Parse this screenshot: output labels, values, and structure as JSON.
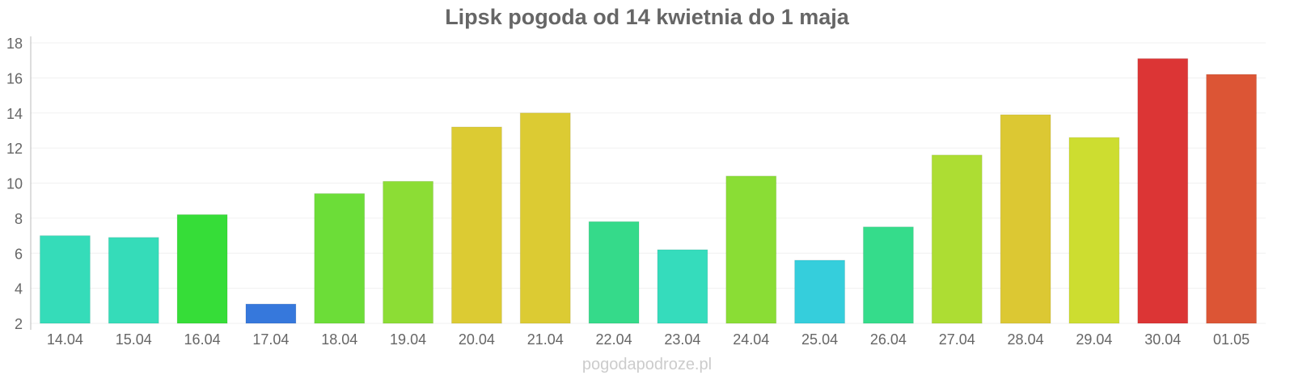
{
  "chart_data": {
    "type": "bar",
    "title": "Lipsk pogoda od 14 kwietnia do 1 maja",
    "xlabel": "",
    "ylabel": "",
    "ylim": [
      2,
      18
    ],
    "yticks": [
      2,
      4,
      6,
      8,
      10,
      12,
      14,
      16,
      18
    ],
    "grid": true,
    "categories": [
      "14.04",
      "15.04",
      "16.04",
      "17.04",
      "18.04",
      "19.04",
      "20.04",
      "21.04",
      "22.04",
      "23.04",
      "24.04",
      "25.04",
      "26.04",
      "27.04",
      "28.04",
      "29.04",
      "30.04",
      "01.05"
    ],
    "values": [
      7.0,
      6.9,
      8.2,
      3.1,
      9.4,
      10.1,
      13.2,
      14.0,
      7.8,
      6.2,
      10.4,
      5.6,
      7.5,
      11.6,
      13.9,
      12.6,
      17.1,
      16.2
    ],
    "colors": [
      "#35dcb9",
      "#35dcb9",
      "#36dd38",
      "#3678dc",
      "#6cdd38",
      "#8cdd35",
      "#dccb33",
      "#dccb33",
      "#35da8a",
      "#35dcbc",
      "#8add35",
      "#35cedc",
      "#35dc8b",
      "#addd33",
      "#dcc833",
      "#cddd30",
      "#dc3535",
      "#dc5535"
    ]
  },
  "watermark": "pogodapodroze.pl"
}
